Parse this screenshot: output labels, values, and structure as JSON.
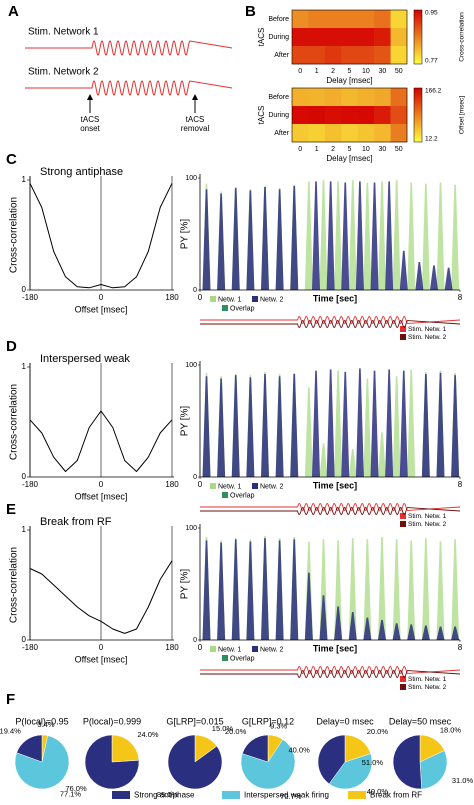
{
  "panel_labels": [
    "A",
    "B",
    "C",
    "D",
    "E",
    "F"
  ],
  "schematic": {
    "networks": [
      "Stim. Network 1",
      "Stim. Network 2"
    ],
    "onset": [
      "tACS",
      "onset"
    ],
    "removal": [
      "tACS",
      "removal"
    ],
    "color": "#e63030"
  },
  "pie_legend": {
    "names": [
      "Strong antiphase",
      "Interspersed weak firing",
      "Break from RF"
    ],
    "colors": [
      "#2b2f7f",
      "#5cc6dc",
      "#f5c518"
    ]
  },
  "chart_data": [
    {
      "type": "heatmap",
      "xlabel": "Delay [msec]",
      "ylabel": "tACS",
      "rows": [
        "Before",
        "During",
        "After"
      ],
      "columns": [
        0,
        1,
        2,
        5,
        10,
        30,
        50
      ],
      "values": [
        [
          0.85,
          0.86,
          0.86,
          0.86,
          0.86,
          0.87,
          0.8
        ],
        [
          0.94,
          0.94,
          0.94,
          0.94,
          0.94,
          0.93,
          0.82
        ],
        [
          0.9,
          0.9,
          0.91,
          0.9,
          0.9,
          0.89,
          0.8
        ]
      ],
      "clim": [
        0.77,
        0.95
      ],
      "colors": [
        "#ffff40",
        "#d40000"
      ],
      "colorbar_label": "Cross-correlation"
    },
    {
      "type": "heatmap",
      "xlabel": "Delay [msec]",
      "ylabel": "tACS",
      "rows": [
        "Before",
        "During",
        "After"
      ],
      "columns": [
        0,
        1,
        2,
        5,
        10,
        30,
        50
      ],
      "values": [
        [
          60,
          58,
          62,
          55,
          60,
          65,
          100
        ],
        [
          160,
          162,
          158,
          160,
          161,
          150,
          120
        ],
        [
          45,
          40,
          50,
          42,
          48,
          55,
          90
        ]
      ],
      "clim": [
        12.2,
        166.2
      ],
      "colors": [
        "#ffff40",
        "#d40000"
      ],
      "colorbar_label": "Offset [msec]"
    },
    {
      "type": "line",
      "title": "Strong antiphase",
      "xlabel": "Offset [msec]",
      "ylabel": "Cross-correlation",
      "color": "#000000",
      "x": [
        -180,
        -150,
        -120,
        -90,
        -60,
        -30,
        0,
        30,
        60,
        90,
        120,
        150,
        180
      ],
      "values": [
        0.97,
        0.75,
        0.35,
        0.12,
        0.03,
        0.02,
        0.05,
        0.02,
        0.03,
        0.12,
        0.35,
        0.75,
        0.97
      ],
      "xlim": [
        -180,
        180
      ],
      "xticks": [
        -180,
        0,
        180
      ],
      "ylim": [
        0,
        1
      ],
      "yticks": [
        0,
        1
      ]
    },
    {
      "type": "spikes",
      "xlabel": "Time [sec]",
      "ylabel": "PY [%]",
      "xlim": [
        0,
        8
      ],
      "xticks": [
        0,
        8
      ],
      "ylim": [
        0,
        100
      ],
      "yticks": [
        0,
        100
      ],
      "series": [
        {
          "name": "Netw. 1",
          "color": "#a8d983",
          "x": [
            0.2,
            0.65,
            1.1,
            1.55,
            2.0,
            2.45,
            2.9,
            3.35,
            3.8,
            4.25,
            4.7,
            5.15,
            5.6,
            6.05,
            6.5,
            6.95,
            7.4,
            7.85
          ],
          "values": [
            95,
            88,
            92,
            90,
            93,
            91,
            94,
            97,
            98,
            97,
            98,
            96,
            97,
            98,
            96,
            95,
            96,
            94
          ]
        },
        {
          "name": "Netw. 2",
          "color": "#2a2e7e",
          "x": [
            0.2,
            0.65,
            1.1,
            1.55,
            2.0,
            2.45,
            2.9,
            3.57,
            4.02,
            4.47,
            4.92,
            5.37,
            5.82,
            6.27,
            6.75,
            7.2,
            7.65
          ],
          "values": [
            90,
            86,
            91,
            89,
            92,
            90,
            93,
            97,
            97,
            96,
            97,
            96,
            97,
            35,
            25,
            22,
            20
          ]
        }
      ],
      "overlap": {
        "name": "Overlap",
        "color": "#2f8f5f"
      },
      "stim": {
        "window": [
          3.0,
          6.4
        ],
        "series": [
          {
            "name": "Stim. Netw. 1",
            "color": "#e63030"
          },
          {
            "name": "Stim. Netw. 2",
            "color": "#6e0e0e"
          }
        ]
      }
    },
    {
      "type": "line",
      "title": "Interspersed weak",
      "xlabel": "Offset [msec]",
      "ylabel": "Cross-correlation",
      "color": "#000000",
      "x": [
        -180,
        -150,
        -120,
        -90,
        -60,
        -30,
        0,
        30,
        60,
        90,
        120,
        150,
        180
      ],
      "values": [
        0.52,
        0.4,
        0.18,
        0.05,
        0.15,
        0.45,
        0.6,
        0.45,
        0.15,
        0.05,
        0.18,
        0.4,
        0.52
      ],
      "xlim": [
        -180,
        180
      ],
      "xticks": [
        -180,
        0,
        180
      ],
      "ylim": [
        0,
        1
      ],
      "yticks": [
        0,
        1
      ]
    },
    {
      "type": "spikes",
      "xlabel": "Time [sec]",
      "ylabel": "PY [%]",
      "xlim": [
        0,
        8
      ],
      "xticks": [
        0,
        8
      ],
      "ylim": [
        0,
        100
      ],
      "yticks": [
        0,
        100
      ],
      "series": [
        {
          "name": "Netw. 1",
          "color": "#a8d983",
          "x": [
            0.2,
            0.65,
            1.1,
            1.55,
            2.0,
            2.45,
            2.9,
            3.35,
            3.8,
            4.25,
            4.7,
            5.15,
            5.6,
            6.05,
            6.5,
            6.95,
            7.4,
            7.85
          ],
          "values": [
            93,
            90,
            92,
            91,
            94,
            92,
            93,
            80,
            30,
            95,
            25,
            88,
            40,
            90,
            96,
            94,
            95,
            93
          ]
        },
        {
          "name": "Netw. 2",
          "color": "#2a2e7e",
          "x": [
            0.2,
            0.65,
            1.1,
            1.55,
            2.0,
            2.45,
            2.9,
            3.57,
            4.02,
            4.47,
            4.92,
            5.37,
            5.82,
            6.27,
            6.95,
            7.4,
            7.85
          ],
          "values": [
            90,
            88,
            91,
            89,
            92,
            90,
            92,
            95,
            96,
            94,
            97,
            95,
            96,
            95,
            92,
            93,
            91
          ]
        }
      ],
      "overlap": {
        "name": "Overlap",
        "color": "#2f8f5f"
      },
      "stim": {
        "window": [
          3.0,
          6.4
        ],
        "series": [
          {
            "name": "Stim. Netw. 1",
            "color": "#e63030"
          },
          {
            "name": "Stim. Netw. 2",
            "color": "#6e0e0e"
          }
        ]
      }
    },
    {
      "type": "line",
      "title": "Break from RF",
      "xlabel": "Offset [msec]",
      "ylabel": "Cross-correlation",
      "color": "#000000",
      "x": [
        -180,
        -150,
        -120,
        -90,
        -60,
        -30,
        0,
        30,
        60,
        90,
        120,
        150,
        180
      ],
      "values": [
        0.65,
        0.6,
        0.5,
        0.4,
        0.3,
        0.22,
        0.17,
        0.1,
        0.06,
        0.1,
        0.3,
        0.55,
        0.72
      ],
      "xlim": [
        -180,
        180
      ],
      "xticks": [
        -180,
        0,
        180
      ],
      "ylim": [
        0,
        1
      ],
      "yticks": [
        0,
        1
      ]
    },
    {
      "type": "spikes",
      "xlabel": "Time [sec]",
      "ylabel": "PY [%]",
      "xlim": [
        0,
        8
      ],
      "xticks": [
        0,
        8
      ],
      "ylim": [
        0,
        100
      ],
      "yticks": [
        0,
        100
      ],
      "series": [
        {
          "name": "Netw. 1",
          "color": "#a8d983",
          "x": [
            0.2,
            0.65,
            1.1,
            1.55,
            2.0,
            2.45,
            2.9,
            3.35,
            3.8,
            4.25,
            4.7,
            5.15,
            5.6,
            6.05,
            6.5,
            6.95,
            7.4,
            7.85
          ],
          "values": [
            92,
            89,
            91,
            90,
            93,
            91,
            92,
            88,
            90,
            89,
            91,
            90,
            92,
            90,
            89,
            91,
            88,
            90
          ]
        },
        {
          "name": "Netw. 2",
          "color": "#2a2e7e",
          "x": [
            0.2,
            0.65,
            1.1,
            1.55,
            2.0,
            2.45,
            2.9,
            3.35,
            3.8,
            4.25,
            4.7,
            5.15,
            5.6,
            6.05,
            6.5,
            6.95,
            7.4,
            7.85
          ],
          "values": [
            89,
            87,
            90,
            88,
            91,
            89,
            90,
            60,
            40,
            30,
            25,
            20,
            18,
            15,
            14,
            13,
            12,
            12
          ]
        }
      ],
      "overlap": {
        "name": "Overlap",
        "color": "#2f8f5f"
      },
      "stim": {
        "window": [
          3.0,
          6.4
        ],
        "series": [
          {
            "name": "Stim. Netw. 1",
            "color": "#e63030"
          },
          {
            "name": "Stim. Netw. 2",
            "color": "#6e0e0e"
          }
        ]
      }
    },
    {
      "type": "pie",
      "title": "P(local)=0.95",
      "values": [
        19.4,
        77.1,
        3.4
      ],
      "value_labels": [
        "19.4%",
        "77.1%",
        "3.4%"
      ]
    },
    {
      "type": "pie",
      "title": "P(local)=0.999",
      "values": [
        76.0,
        0,
        24.0
      ],
      "value_labels": [
        "76.0%",
        null,
        "24.0%"
      ]
    },
    {
      "type": "pie",
      "title": "G[LRP]=0.015",
      "values": [
        85.0,
        0,
        15.0
      ],
      "value_labels": [
        "85.0%",
        null,
        "15.0%"
      ]
    },
    {
      "type": "pie",
      "title": "G[LRP]=0.12",
      "values": [
        20.0,
        70.7,
        9.3
      ],
      "value_labels": [
        "20.0%",
        "70.7%",
        "9.3%"
      ]
    },
    {
      "type": "pie",
      "title": "Delay=0 msec",
      "values": [
        40.0,
        40.0,
        20.0
      ],
      "value_labels": [
        "40.0%",
        "40.0%",
        "20.0%"
      ]
    },
    {
      "type": "pie",
      "title": "Delay=50 msec",
      "values": [
        51.0,
        31.0,
        18.0
      ],
      "value_labels": [
        "51.0%",
        "31.0%",
        "18.0%"
      ]
    }
  ]
}
